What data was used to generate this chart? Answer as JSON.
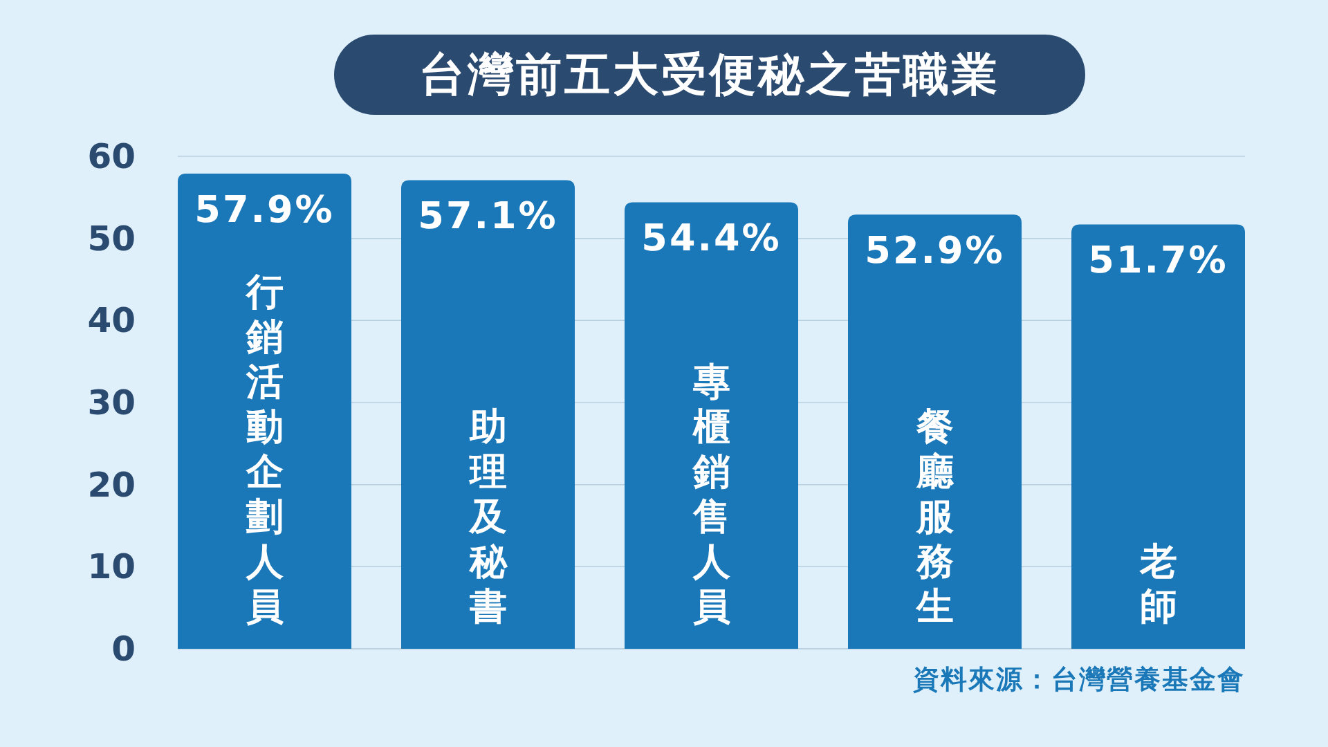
{
  "chart_data": {
    "type": "bar",
    "title": "台灣前五大受便秘之苦職業",
    "categories": [
      "行銷活動企劃人員",
      "助理及秘書",
      "專櫃銷售人員",
      "餐廳服務生",
      "老師"
    ],
    "values": [
      57.9,
      57.1,
      54.4,
      52.9,
      51.7
    ],
    "value_labels": [
      "57.9%",
      "57.1%",
      "54.4%",
      "52.9%",
      "51.7%"
    ],
    "color": "#1a78b8",
    "ylim": [
      0,
      60
    ],
    "yticks": [
      0,
      10,
      20,
      30,
      40,
      50,
      60
    ],
    "grid": "y",
    "annotations": [
      "資料來源：台灣營養基金會"
    ]
  }
}
